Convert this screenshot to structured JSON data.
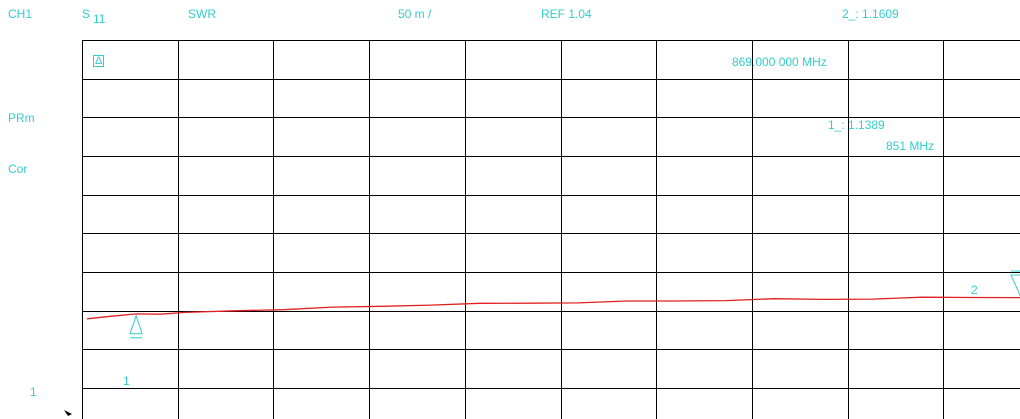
{
  "header": {
    "channel": "CH1",
    "param_s": "S",
    "param_sub": "11",
    "format": "SWR",
    "scale": "50 m /",
    "ref": "REF 1.04",
    "marker_readout": "2_: 1.1609"
  },
  "side_labels": {
    "prm": "PRm",
    "cor": "Cor",
    "bottom_ref": "1"
  },
  "markers": {
    "active_freq": "869.000 000 MHz",
    "m1_value": "1_: 1.1389",
    "m1_freq": "851 MHz",
    "m1_label": "1",
    "m2_label": "2"
  },
  "colors": {
    "text": "#33cccc",
    "grid": "#000000",
    "trace": "#e02020",
    "marker": "#33cccc"
  },
  "chart_data": {
    "type": "line",
    "title": "",
    "xlabel": "",
    "ylabel": "",
    "xlim": [
      850.0,
      869.0
    ],
    "ylim": [
      1.0,
      1.5
    ],
    "grid": true,
    "x_divisions": 10,
    "y_divisions": 10,
    "series": [
      {
        "x": [
          850.0,
          850.5,
          851.0,
          851.5,
          852.0,
          853.0,
          854.0,
          855.0,
          856.0,
          857.0,
          858.0,
          859.0,
          860.0,
          861.0,
          862.0,
          863.0,
          864.0,
          865.0,
          866.0,
          867.0,
          868.0,
          869.0
        ],
        "values": [
          1.133,
          1.135,
          1.1389,
          1.139,
          1.14,
          1.143,
          1.145,
          1.147,
          1.149,
          1.151,
          1.152,
          1.153,
          1.154,
          1.155,
          1.156,
          1.157,
          1.158,
          1.158,
          1.159,
          1.16,
          1.1605,
          1.1609
        ]
      }
    ],
    "markers": [
      {
        "label": "1",
        "x": 851.0,
        "y": 1.1389
      },
      {
        "label": "2",
        "x": 869.0,
        "y": 1.1609
      }
    ]
  }
}
